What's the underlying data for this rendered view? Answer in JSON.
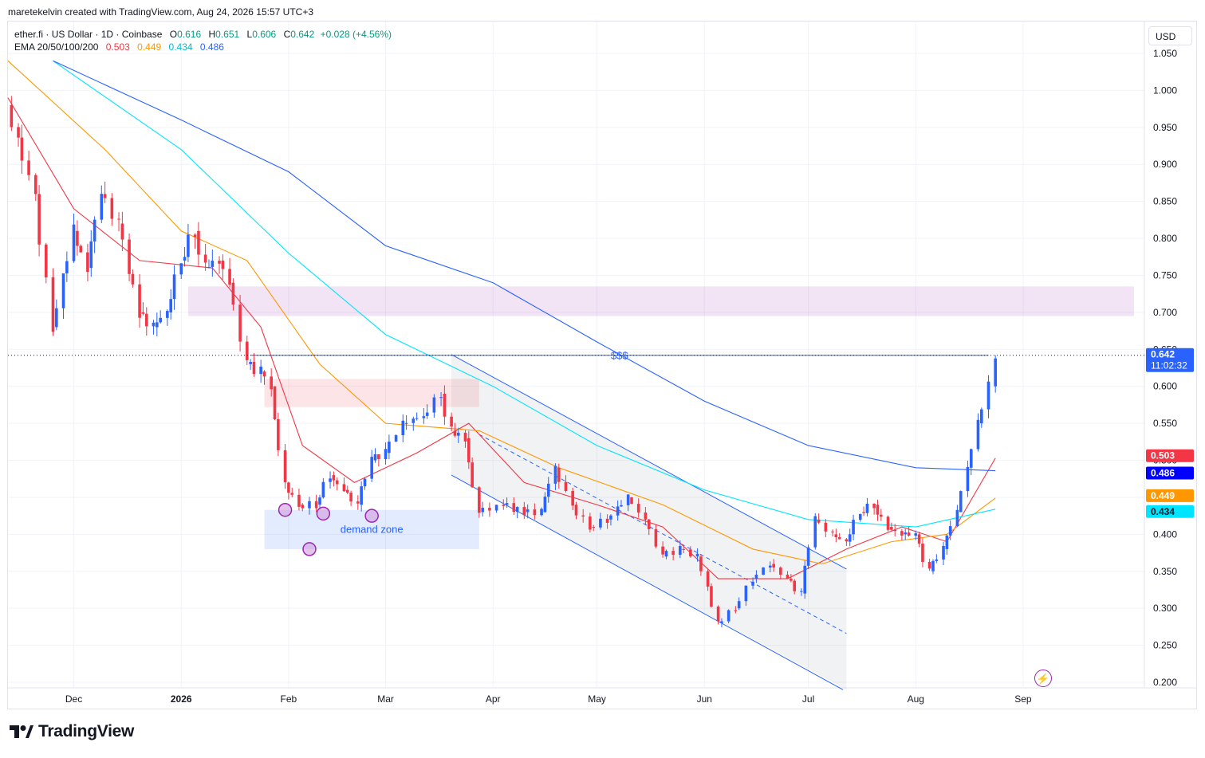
{
  "header": {
    "attribution": "maretekelvin created with TradingView.com, Aug 24, 2026 15:57 UTC+3"
  },
  "legend": {
    "symbol": "ether.fi · US Dollar · 1D · Coinbase",
    "ohlc": {
      "o_label": "O",
      "o": "0.616",
      "h_label": "H",
      "h": "0.651",
      "l_label": "L",
      "l": "0.606",
      "c_label": "C",
      "c": "0.642",
      "change": "+0.028 (+4.56%)"
    },
    "ema_label": "EMA 20/50/100/200",
    "ema_values": [
      "0.503",
      "0.449",
      "0.434",
      "0.486"
    ]
  },
  "currency_button": "USD",
  "brand": "TradingView",
  "icons": {
    "logo": "tradingview-logo-icon",
    "bolt": "lightning-icon"
  },
  "colors": {
    "up": "#089981",
    "down": "#f23645",
    "ema20": "#f23645",
    "ema50": "#ff9800",
    "ema100": "#00e5ff",
    "ema200": "#2962ff",
    "channel": "#2962ff",
    "annotation": "#9c27b0"
  },
  "chart_data": {
    "type": "candlestick",
    "symbol": "ether.fi / US Dollar",
    "timeframe": "1D",
    "exchange": "Coinbase",
    "ylim": [
      0.2,
      1.05
    ],
    "y_ticks": [
      "1.050",
      "1.000",
      "0.950",
      "0.900",
      "0.850",
      "0.800",
      "0.750",
      "0.700",
      "0.650",
      "0.600",
      "0.550",
      "0.500",
      "0.450",
      "0.400",
      "0.350",
      "0.300",
      "0.250",
      "0.200"
    ],
    "y_tick_values": [
      1.05,
      1.0,
      0.95,
      0.9,
      0.85,
      0.8,
      0.75,
      0.7,
      0.65,
      0.6,
      0.55,
      0.5,
      0.45,
      0.4,
      0.35,
      0.3,
      0.25,
      0.2
    ],
    "x_tick_labels": [
      "Dec",
      "2026",
      "Feb",
      "Mar",
      "Apr",
      "May",
      "Jun",
      "Jul",
      "Aug",
      "Sep"
    ],
    "x_tick_dates": [
      "2025-12-01",
      "2026-01-01",
      "2026-02-01",
      "2026-03-01",
      "2026-04-01",
      "2026-05-01",
      "2026-06-01",
      "2026-07-01",
      "2026-08-01",
      "2026-09-01"
    ],
    "x_range": [
      "2025-11-12",
      "2026-10-06"
    ],
    "last_candle": {
      "date": "2026-08-24",
      "open": 0.616,
      "high": 0.651,
      "low": 0.606,
      "close": 0.642
    },
    "price_labels": [
      {
        "text": "0.642",
        "value": 0.642,
        "sub": "11:02:32",
        "color": "#2962ff"
      },
      {
        "text": "0.503",
        "value": 0.503,
        "color": "#f23645"
      },
      {
        "text": "0.486",
        "value": 0.486,
        "color": "#0000ff"
      },
      {
        "text": "0.449",
        "value": 0.449,
        "color": "#ff9800"
      },
      {
        "text": "0.434",
        "value": 0.434,
        "color": "#00e5ff"
      }
    ],
    "close_series": [
      [
        "2025-11-12",
        0.98
      ],
      [
        "2025-11-20",
        0.86
      ],
      [
        "2025-11-25",
        0.68
      ],
      [
        "2025-12-01",
        0.81
      ],
      [
        "2025-12-05",
        0.76
      ],
      [
        "2025-12-09",
        0.86
      ],
      [
        "2025-12-14",
        0.82
      ],
      [
        "2025-12-20",
        0.7
      ],
      [
        "2025-12-24",
        0.68
      ],
      [
        "2025-12-28",
        0.7
      ],
      [
        "2026-01-01",
        0.77
      ],
      [
        "2026-01-05",
        0.81
      ],
      [
        "2026-01-08",
        0.76
      ],
      [
        "2026-01-12",
        0.77
      ],
      [
        "2026-01-15",
        0.74
      ],
      [
        "2026-01-20",
        0.63
      ],
      [
        "2026-01-24",
        0.62
      ],
      [
        "2026-01-27",
        0.6
      ],
      [
        "2026-01-31",
        0.47
      ],
      [
        "2026-02-04",
        0.44
      ],
      [
        "2026-02-09",
        0.44
      ],
      [
        "2026-02-13",
        0.48
      ],
      [
        "2026-02-17",
        0.46
      ],
      [
        "2026-02-21",
        0.44
      ],
      [
        "2026-02-25",
        0.5
      ],
      [
        "2026-03-01",
        0.51
      ],
      [
        "2026-03-06",
        0.55
      ],
      [
        "2026-03-12",
        0.56
      ],
      [
        "2026-03-17",
        0.59
      ],
      [
        "2026-03-20",
        0.54
      ],
      [
        "2026-03-24",
        0.53
      ],
      [
        "2026-03-28",
        0.43
      ],
      [
        "2026-04-04",
        0.44
      ],
      [
        "2026-04-10",
        0.43
      ],
      [
        "2026-04-15",
        0.43
      ],
      [
        "2026-04-19",
        0.49
      ],
      [
        "2026-04-24",
        0.44
      ],
      [
        "2026-04-29",
        0.41
      ],
      [
        "2026-05-04",
        0.42
      ],
      [
        "2026-05-10",
        0.45
      ],
      [
        "2026-05-15",
        0.42
      ],
      [
        "2026-05-20",
        0.37
      ],
      [
        "2026-05-25",
        0.38
      ],
      [
        "2026-05-30",
        0.37
      ],
      [
        "2026-06-02",
        0.33
      ],
      [
        "2026-06-05",
        0.28
      ],
      [
        "2026-06-10",
        0.3
      ],
      [
        "2026-06-15",
        0.34
      ],
      [
        "2026-06-20",
        0.36
      ],
      [
        "2026-06-25",
        0.34
      ],
      [
        "2026-06-29",
        0.32
      ],
      [
        "2026-07-03",
        0.42
      ],
      [
        "2026-07-08",
        0.4
      ],
      [
        "2026-07-12",
        0.39
      ],
      [
        "2026-07-16",
        0.43
      ],
      [
        "2026-07-20",
        0.44
      ],
      [
        "2026-07-24",
        0.41
      ],
      [
        "2026-07-28",
        0.4
      ],
      [
        "2026-08-01",
        0.4
      ],
      [
        "2026-08-05",
        0.35
      ],
      [
        "2026-08-09",
        0.38
      ],
      [
        "2026-08-13",
        0.43
      ],
      [
        "2026-08-16",
        0.49
      ],
      [
        "2026-08-19",
        0.55
      ],
      [
        "2026-08-22",
        0.6
      ],
      [
        "2026-08-24",
        0.642
      ]
    ],
    "ema_series": [
      {
        "name": "EMA 20",
        "color": "#f23645",
        "points": [
          [
            "2025-11-12",
            0.99
          ],
          [
            "2025-12-01",
            0.84
          ],
          [
            "2025-12-20",
            0.77
          ],
          [
            "2026-01-10",
            0.76
          ],
          [
            "2026-01-24",
            0.68
          ],
          [
            "2026-02-05",
            0.52
          ],
          [
            "2026-02-20",
            0.47
          ],
          [
            "2026-03-10",
            0.51
          ],
          [
            "2026-03-25",
            0.55
          ],
          [
            "2026-04-10",
            0.47
          ],
          [
            "2026-05-01",
            0.44
          ],
          [
            "2026-05-20",
            0.41
          ],
          [
            "2026-06-05",
            0.34
          ],
          [
            "2026-06-25",
            0.34
          ],
          [
            "2026-07-12",
            0.38
          ],
          [
            "2026-07-28",
            0.41
          ],
          [
            "2026-08-10",
            0.39
          ],
          [
            "2026-08-24",
            0.503
          ]
        ]
      },
      {
        "name": "EMA 50",
        "color": "#ff9800",
        "points": [
          [
            "2025-11-12",
            1.04
          ],
          [
            "2025-12-10",
            0.92
          ],
          [
            "2026-01-01",
            0.81
          ],
          [
            "2026-01-20",
            0.77
          ],
          [
            "2026-02-10",
            0.63
          ],
          [
            "2026-03-01",
            0.55
          ],
          [
            "2026-03-28",
            0.54
          ],
          [
            "2026-04-20",
            0.49
          ],
          [
            "2026-05-20",
            0.44
          ],
          [
            "2026-06-15",
            0.38
          ],
          [
            "2026-07-05",
            0.36
          ],
          [
            "2026-07-25",
            0.39
          ],
          [
            "2026-08-10",
            0.4
          ],
          [
            "2026-08-24",
            0.449
          ]
        ]
      },
      {
        "name": "EMA 100",
        "color": "#00e5ff",
        "points": [
          [
            "2025-11-25",
            1.04
          ],
          [
            "2026-01-01",
            0.92
          ],
          [
            "2026-02-01",
            0.78
          ],
          [
            "2026-03-01",
            0.67
          ],
          [
            "2026-04-01",
            0.6
          ],
          [
            "2026-05-01",
            0.52
          ],
          [
            "2026-06-01",
            0.46
          ],
          [
            "2026-07-01",
            0.42
          ],
          [
            "2026-08-01",
            0.41
          ],
          [
            "2026-08-24",
            0.434
          ]
        ]
      },
      {
        "name": "EMA 200",
        "color": "#2962ff",
        "points": [
          [
            "2025-11-25",
            1.04
          ],
          [
            "2026-01-01",
            0.96
          ],
          [
            "2026-02-01",
            0.89
          ],
          [
            "2026-03-01",
            0.79
          ],
          [
            "2026-04-01",
            0.74
          ],
          [
            "2026-05-01",
            0.66
          ],
          [
            "2026-06-01",
            0.58
          ],
          [
            "2026-07-01",
            0.52
          ],
          [
            "2026-08-01",
            0.49
          ],
          [
            "2026-08-24",
            0.486
          ]
        ]
      }
    ],
    "annotations": [
      {
        "type": "zone",
        "label": "",
        "from": "2026-01-03",
        "to": "2026-10-03",
        "y_top": 0.735,
        "y_bottom": 0.695,
        "color": "#9c27b0"
      },
      {
        "type": "zone",
        "label": "",
        "from": "2026-01-25",
        "to": "2026-03-28",
        "y_top": 0.61,
        "y_bottom": 0.572,
        "color": "#f23645"
      },
      {
        "type": "zone",
        "label": "demand zone",
        "from": "2026-01-25",
        "to": "2026-03-28",
        "y_top": 0.433,
        "y_bottom": 0.38,
        "color": "#2962ff"
      },
      {
        "type": "hline",
        "label": "$$$",
        "from": "2026-01-21",
        "to": "2026-08-22",
        "y": 0.642,
        "color": "#2962ff"
      },
      {
        "type": "channel",
        "upper": [
          [
            "2026-03-20",
            0.643
          ],
          [
            "2026-07-12",
            0.353
          ]
        ],
        "lower": [
          [
            "2026-03-20",
            0.48
          ],
          [
            "2026-07-11",
            0.19
          ]
        ],
        "mid": [
          [
            "2026-03-28",
            0.535
          ],
          [
            "2026-07-12",
            0.266
          ]
        ],
        "color": "#2962ff"
      },
      {
        "type": "circles",
        "points": [
          [
            "2026-01-31",
            0.433
          ],
          [
            "2026-02-07",
            0.38
          ],
          [
            "2026-02-11",
            0.428
          ],
          [
            "2026-02-25",
            0.425
          ]
        ],
        "color": "#9c27b0"
      }
    ]
  }
}
